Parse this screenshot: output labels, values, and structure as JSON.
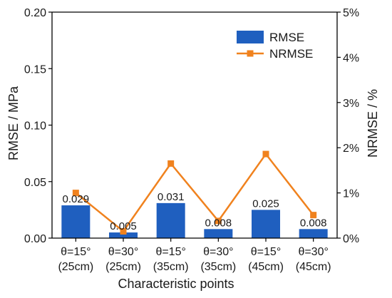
{
  "chart_data": {
    "type": "bar",
    "categories": [
      [
        "θ=15°",
        "(25cm)"
      ],
      [
        "θ=30°",
        "(25cm)"
      ],
      [
        "θ=15°",
        "(35cm)"
      ],
      [
        "θ=30°",
        "(35cm)"
      ],
      [
        "θ=15°",
        "(45cm)"
      ],
      [
        "θ=30°",
        "(45cm)"
      ]
    ],
    "xlabel": "Characteristic points",
    "ylabel_left": "RMSE / MPa",
    "ylabel_right": "NRMSE / %",
    "ylim_left": [
      0,
      0.2
    ],
    "yticks_left": [
      "0.00",
      "0.05",
      "0.10",
      "0.15",
      "0.20"
    ],
    "ylim_right": [
      0,
      5
    ],
    "yticks_right": [
      "0%",
      "1%",
      "2%",
      "3%",
      "4%",
      "5%"
    ],
    "series": [
      {
        "name": "RMSE",
        "type": "bar",
        "axis": "left",
        "color": "#1f5fbf",
        "values": [
          0.029,
          0.005,
          0.031,
          0.008,
          0.025,
          0.008
        ],
        "labels": [
          "0.029",
          "0.005",
          "0.031",
          "0.008",
          "0.025",
          "0.008"
        ]
      },
      {
        "name": "NRMSE",
        "type": "line",
        "axis": "right",
        "color": "#f0821e",
        "marker": "square",
        "values": [
          1.0,
          0.15,
          1.65,
          0.38,
          1.86,
          0.51
        ]
      }
    ],
    "legend": {
      "position": "top-right"
    },
    "grid": false
  }
}
